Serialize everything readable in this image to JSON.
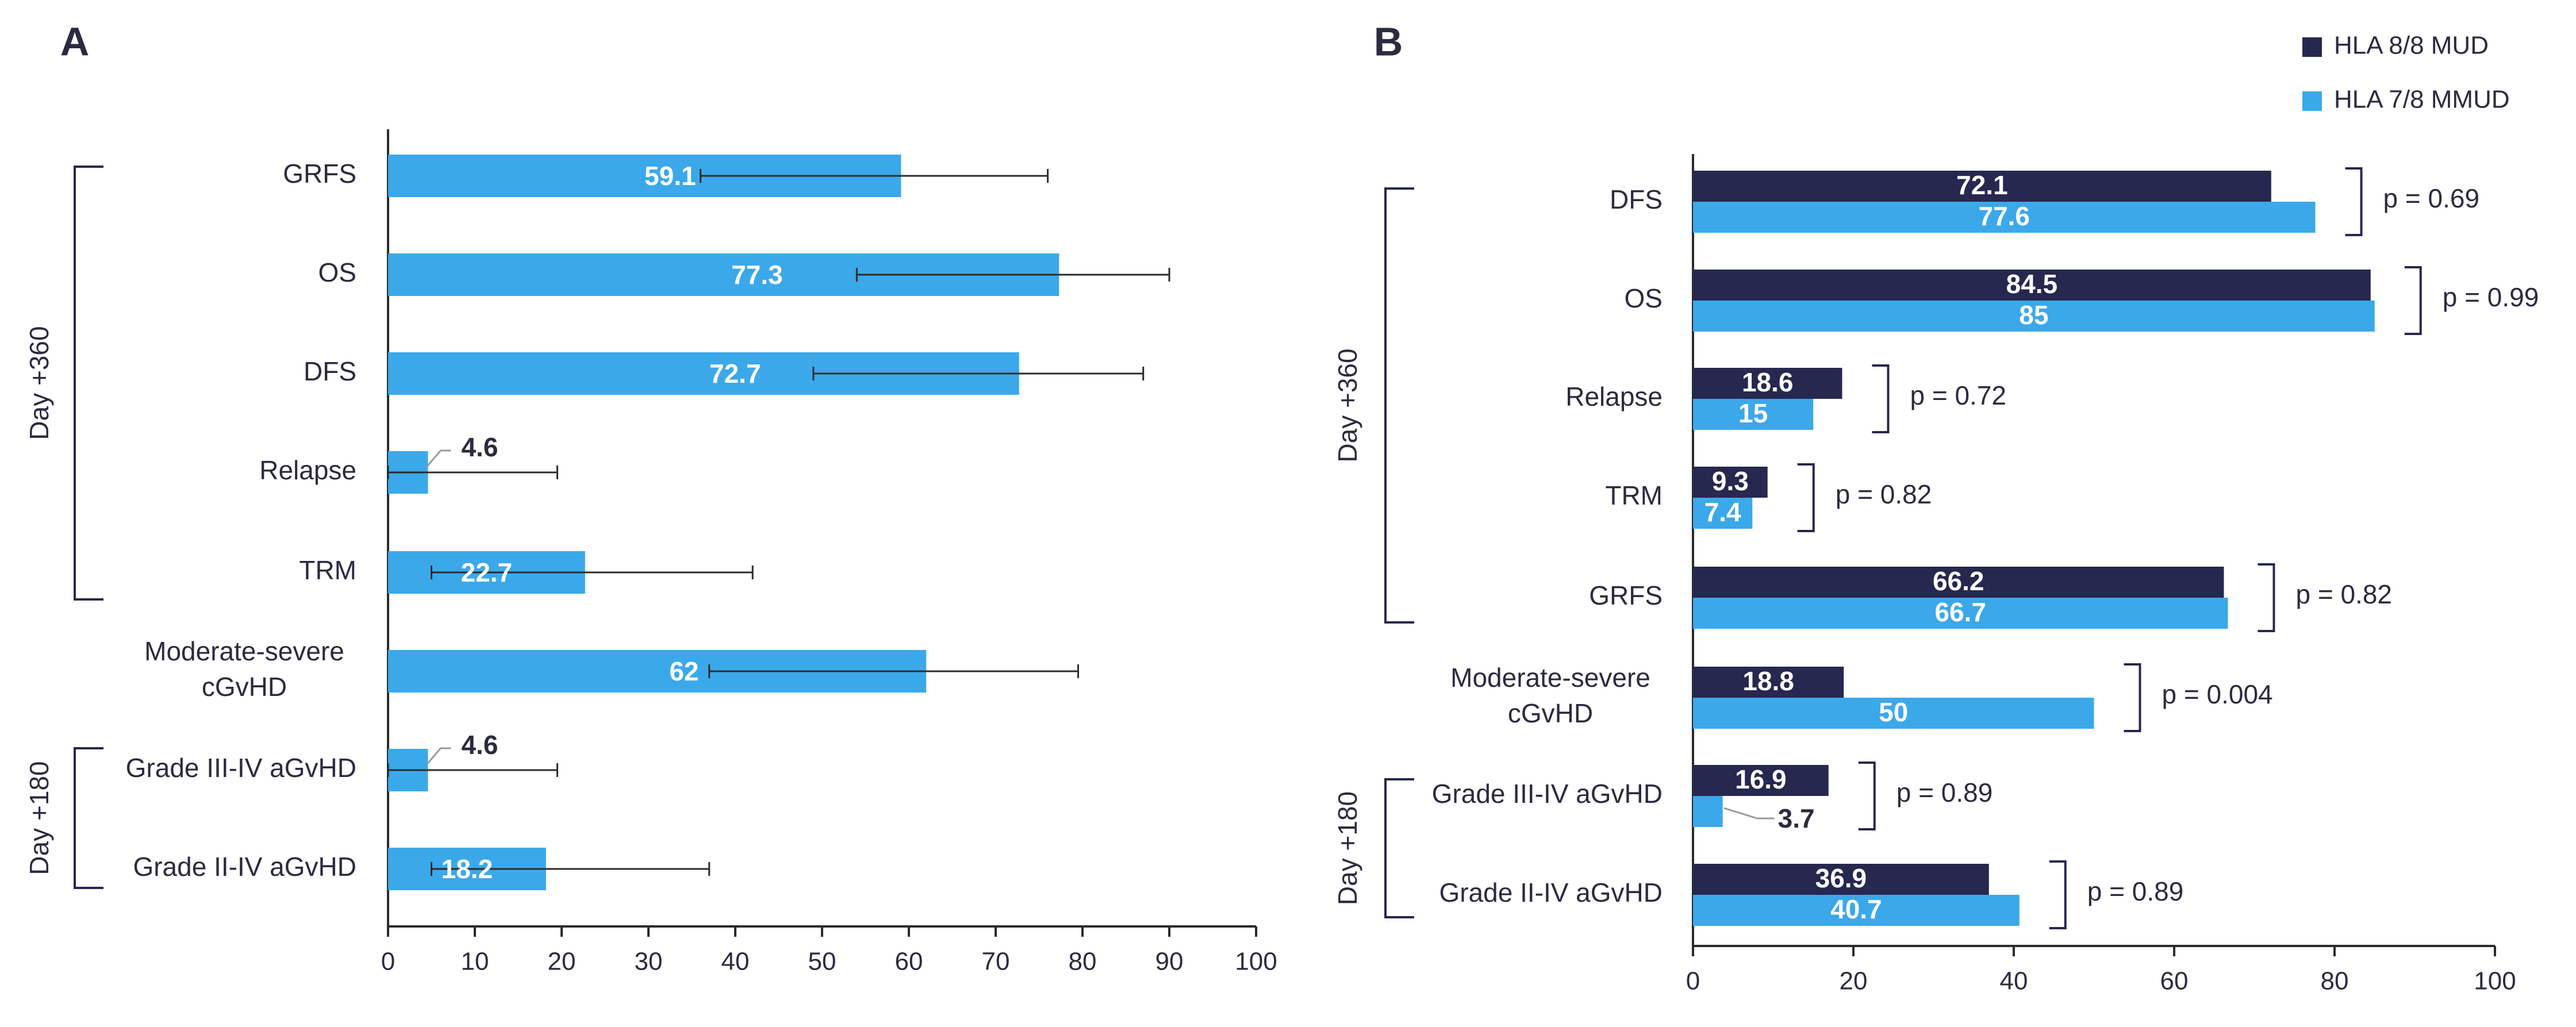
{
  "colors": {
    "mud": "#26284f",
    "mmud": "#3ba8ea",
    "axis": "#2b2b2b",
    "text": "#2b2b3f"
  },
  "chart_data": [
    {
      "panel": "A",
      "type": "bar",
      "orientation": "horizontal",
      "categories": [
        "GRFS",
        "OS",
        "DFS",
        "Relapse",
        "TRM",
        "Moderate-severe\ncGvHD",
        "Grade III-IV aGvHD",
        "Grade II-IV aGvHD"
      ],
      "series": [
        {
          "color": "#3ba8ea",
          "values": [
            59.1,
            77.3,
            72.7,
            4.6,
            22.7,
            62,
            4.6,
            18.2
          ],
          "labels": [
            "59.1",
            "77.3",
            "72.7",
            "4.6",
            "22.7",
            "62",
            "4.6",
            "18.2"
          ]
        }
      ],
      "error_bars": [
        [
          36,
          76
        ],
        [
          54,
          90
        ],
        [
          49,
          87
        ],
        [
          0,
          19.5
        ],
        [
          5,
          42
        ],
        [
          37,
          79.5
        ],
        [
          0,
          19.5
        ],
        [
          5,
          37
        ]
      ],
      "groups": [
        {
          "label": "Day +360",
          "categories": [
            0,
            4
          ]
        },
        {
          "label": "Day +180",
          "categories": [
            6,
            7
          ]
        }
      ],
      "xlim": [
        0,
        100
      ],
      "xticks": [
        "0",
        "10",
        "20",
        "30",
        "40",
        "50",
        "60",
        "70",
        "80",
        "90",
        "100"
      ],
      "xtick_values": [
        0,
        10,
        20,
        30,
        40,
        50,
        60,
        70,
        80,
        90,
        100
      ],
      "grid": false
    },
    {
      "panel": "B",
      "type": "bar",
      "orientation": "horizontal",
      "categories": [
        "DFS",
        "OS",
        "Relapse",
        "TRM",
        "GRFS",
        "Moderate-severe\ncGvHD",
        "Grade III-IV aGvHD",
        "Grade II-IV aGvHD"
      ],
      "series": [
        {
          "name": "HLA 8/8 MUD",
          "color": "#26284f",
          "values": [
            72.1,
            84.5,
            18.6,
            9.3,
            66.2,
            18.8,
            16.9,
            36.9
          ],
          "labels": [
            "72.1",
            "84.5",
            "18.6",
            "9.3",
            "66.2",
            "18.8",
            "16.9",
            "36.9"
          ]
        },
        {
          "name": "HLA 7/8 MMUD",
          "color": "#3ba8ea",
          "values": [
            77.6,
            85,
            15,
            7.4,
            66.7,
            50,
            3.7,
            40.7
          ],
          "labels": [
            "77.6",
            "85",
            "15",
            "7.4",
            "66.7",
            "50",
            "3.7",
            "40.7"
          ]
        }
      ],
      "p_values": [
        "p = 0.69",
        "p = 0.99",
        "p = 0.72",
        "p = 0.82",
        "p = 0.82",
        "p = 0.004",
        "p = 0.89",
        "p = 0.89"
      ],
      "groups": [
        {
          "label": "Day +360",
          "categories": [
            0,
            4
          ]
        },
        {
          "label": "Day +180",
          "categories": [
            6,
            7
          ]
        }
      ],
      "xlim": [
        0,
        100
      ],
      "xticks": [
        "0",
        "20",
        "40",
        "60",
        "80",
        "100"
      ],
      "xtick_values": [
        0,
        20,
        40,
        60,
        80,
        100
      ],
      "legend_position": "top-right",
      "grid": false
    }
  ]
}
